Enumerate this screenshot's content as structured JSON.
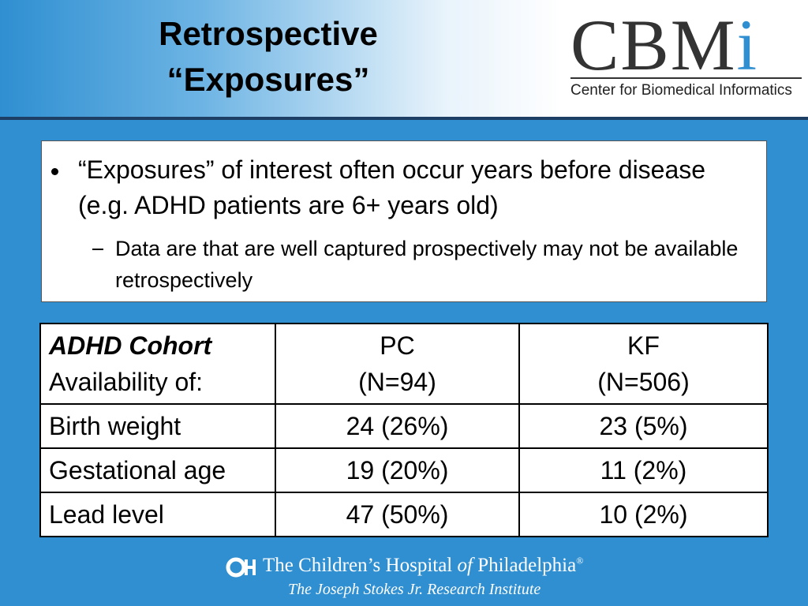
{
  "header": {
    "title": [
      "Retrospective",
      "“Exposures”"
    ]
  },
  "logo": {
    "mark": [
      "CBM",
      "i"
    ],
    "subtitle": "Center for Biomedical Informatics"
  },
  "bullets": [
    {
      "text": "“Exposures” of interest often occur years before disease (e.g. ADHD patients are 6+ years old)",
      "subs": [
        "Data are that are well captured prospectively may not be available retrospectively"
      ]
    }
  ],
  "table": {
    "header": [
      [
        "ADHD Cohort",
        "Availability of:"
      ],
      [
        "PC",
        "(N=94)"
      ],
      [
        "KF",
        "(N=506)"
      ]
    ],
    "rows": [
      [
        "Birth weight",
        "24 (26%)",
        "23 (5%)"
      ],
      [
        "Gestational age",
        "19 (20%)",
        "11 (2%)"
      ],
      [
        "Lead level",
        "47 (50%)",
        "10 (2%)"
      ]
    ]
  },
  "footer": {
    "name": [
      "The Children’s Hospital ",
      "of",
      " Philadelphia"
    ],
    "registered": "®",
    "institute": "The Joseph Stokes Jr. Research Institute"
  }
}
